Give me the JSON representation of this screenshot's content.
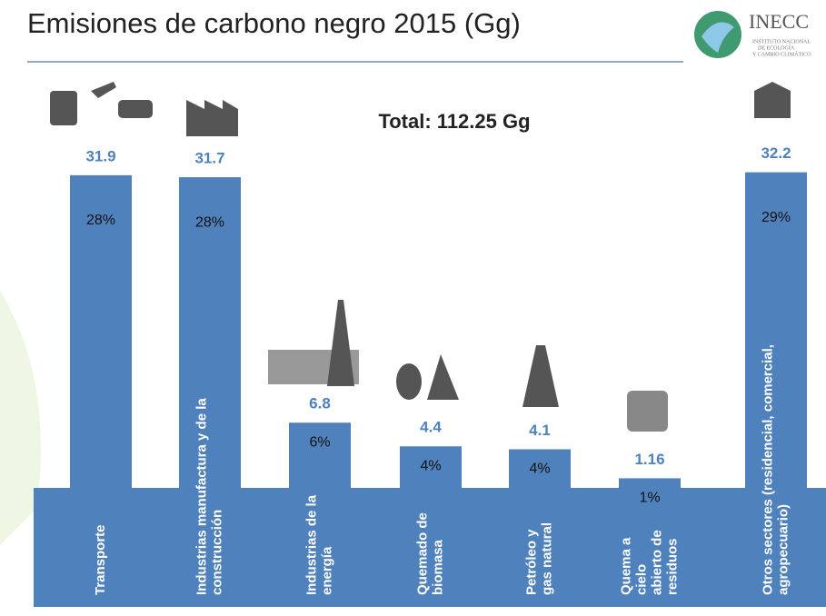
{
  "chart_data": {
    "type": "bar",
    "title": "Emisiones de carbono negro 2015 (Gg)",
    "annotation": "Total: 112.25 Gg",
    "logo": {
      "name": "INECC",
      "subtitle": [
        "INSTITUTO NACIONAL",
        "DE ECOLOGÍA",
        "Y CAMBIO CLIMÁTICO"
      ]
    },
    "categories": [
      "Transporte",
      "Industrias manufactura y de la\nconstrucción",
      "Industrias de la\nenergía",
      "Quemado de\nbiomasa",
      "Petróleo y\ngas natural",
      "Quema a\ncielo\nabierto de\nresiduos",
      "Otros sectores (residencial, comercial,\nagropecuario)"
    ],
    "values": [
      31.9,
      31.7,
      6.8,
      4.4,
      4.1,
      1.16,
      32.2
    ],
    "shares": [
      28,
      28,
      6,
      4,
      4,
      1,
      29
    ],
    "share_labels": [
      "28%",
      "28%",
      "6%",
      "4%",
      "4%",
      "1%",
      "29%"
    ],
    "color": "#4f81bd"
  }
}
